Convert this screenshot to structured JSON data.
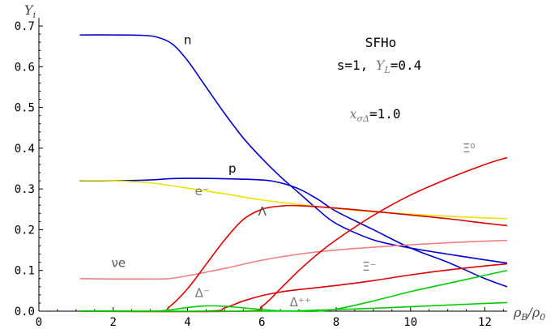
{
  "chart_data": {
    "type": "line",
    "xlabel": "ρB/ρ0",
    "ylabel": "Yi",
    "xlim": [
      0,
      12.6
    ],
    "ylim": [
      0,
      0.72
    ],
    "xticks": [
      0,
      2,
      4,
      6,
      8,
      10,
      12
    ],
    "yticks": [
      0.0,
      0.1,
      0.2,
      0.3,
      0.4,
      0.5,
      0.6,
      0.7
    ],
    "xtick_labels": [
      "0",
      "2",
      "4",
      "6",
      "8",
      "10",
      "12"
    ],
    "ytick_labels": [
      "0.0",
      "0.1",
      "0.2",
      "0.3",
      "0.4",
      "0.5",
      "0.6",
      "0.7"
    ],
    "grid": false,
    "annotations": [
      {
        "text": "SFHo"
      },
      {
        "text": "s=1, YL=0.4"
      },
      {
        "text": "xσΔ=1.0"
      }
    ],
    "series": [
      {
        "name": "n",
        "color": "#0000cc",
        "x": [
          1.1,
          2.0,
          2.8,
          3.2,
          3.6,
          4.0,
          4.5,
          5.0,
          5.5,
          6.0,
          6.5,
          7.0,
          7.5,
          8.0,
          9.0,
          10.0,
          11.0,
          12.0,
          12.6
        ],
        "y": [
          0.678,
          0.678,
          0.677,
          0.672,
          0.655,
          0.615,
          0.55,
          0.485,
          0.425,
          0.375,
          0.33,
          0.29,
          0.25,
          0.215,
          0.175,
          0.155,
          0.14,
          0.126,
          0.118
        ]
      },
      {
        "name": "p",
        "color": "#0000cc",
        "x": [
          1.1,
          2.0,
          3.0,
          3.5,
          4.0,
          5.0,
          6.0,
          6.5,
          7.0,
          7.5,
          8.0,
          9.0,
          10.0,
          11.0,
          12.0,
          12.6
        ],
        "y": [
          0.32,
          0.32,
          0.322,
          0.325,
          0.326,
          0.325,
          0.322,
          0.315,
          0.3,
          0.275,
          0.245,
          0.2,
          0.155,
          0.12,
          0.08,
          0.06
        ]
      },
      {
        "name": "e⁻",
        "color": "#e6e600",
        "x": [
          1.1,
          2.0,
          3.0,
          4.0,
          5.0,
          6.0,
          7.0,
          8.0,
          9.0,
          10.0,
          11.0,
          12.0,
          12.6
        ],
        "y": [
          0.321,
          0.32,
          0.315,
          0.302,
          0.288,
          0.273,
          0.262,
          0.252,
          0.244,
          0.238,
          0.233,
          0.229,
          0.227
        ]
      },
      {
        "name": "νe",
        "color": "#f08080",
        "x": [
          1.1,
          2.0,
          3.0,
          3.5,
          4.0,
          5.0,
          6.0,
          7.0,
          8.0,
          9.0,
          10.0,
          11.0,
          12.0,
          12.6
        ],
        "y": [
          0.08,
          0.079,
          0.079,
          0.08,
          0.087,
          0.105,
          0.125,
          0.14,
          0.15,
          0.157,
          0.163,
          0.168,
          0.172,
          0.174
        ]
      },
      {
        "name": "Λ",
        "color": "#dd0000",
        "x": [
          1.1,
          3.2,
          3.5,
          4.0,
          4.5,
          5.0,
          5.5,
          6.0,
          6.5,
          7.0,
          8.0,
          9.0,
          10.0,
          11.0,
          12.0,
          12.6
        ],
        "y": [
          0.0,
          0.0,
          0.01,
          0.055,
          0.115,
          0.175,
          0.225,
          0.25,
          0.258,
          0.259,
          0.253,
          0.245,
          0.236,
          0.227,
          0.216,
          0.21
        ]
      },
      {
        "name": "Ξ⁰",
        "color": "#dd0000",
        "x": [
          1.1,
          5.5,
          6.0,
          6.5,
          7.0,
          7.5,
          8.0,
          9.0,
          10.0,
          11.0,
          12.0,
          12.6
        ],
        "y": [
          0.0,
          0.0,
          0.012,
          0.055,
          0.1,
          0.14,
          0.175,
          0.235,
          0.285,
          0.325,
          0.36,
          0.377
        ]
      },
      {
        "name": "Ξ⁻",
        "color": "#dd0000",
        "x": [
          1.1,
          4.5,
          5.0,
          5.5,
          6.0,
          6.5,
          7.0,
          8.0,
          9.0,
          10.0,
          11.0,
          12.0,
          12.6
        ],
        "y": [
          0.0,
          0.0,
          0.008,
          0.025,
          0.038,
          0.047,
          0.053,
          0.063,
          0.075,
          0.089,
          0.101,
          0.111,
          0.116
        ]
      },
      {
        "name": "Δ⁻",
        "color": "#00cc00",
        "x": [
          1.1,
          3.0,
          3.5,
          4.0,
          4.5,
          5.0,
          5.5,
          6.0,
          6.5,
          7.0,
          7.5,
          8.0,
          9.0,
          10.0,
          11.0,
          12.0,
          12.6
        ],
        "y": [
          0.0,
          0.0,
          0.003,
          0.009,
          0.013,
          0.012,
          0.008,
          0.004,
          0.001,
          0.0,
          0.0,
          0.005,
          0.025,
          0.048,
          0.068,
          0.088,
          0.1
        ]
      },
      {
        "name": "Δ⁺⁺",
        "color": "#00cc00",
        "x": [
          1.1,
          6.5,
          7.0,
          8.0,
          9.0,
          10.0,
          11.0,
          12.0,
          12.6
        ],
        "y": [
          0.0,
          0.0,
          0.001,
          0.004,
          0.007,
          0.011,
          0.015,
          0.019,
          0.021
        ]
      }
    ],
    "curve_labels": [
      {
        "text": "n",
        "color": "#000000",
        "at": [
          3.9,
          0.655
        ]
      },
      {
        "text": "p",
        "color": "#000000",
        "at": [
          5.1,
          0.34
        ]
      },
      {
        "text": "e⁻",
        "color": "#777777",
        "at": [
          4.2,
          0.284
        ]
      },
      {
        "text": "Λ",
        "color": "#555555",
        "at": [
          5.9,
          0.235
        ]
      },
      {
        "text": "Ξ⁰",
        "color": "#777777",
        "at": [
          11.4,
          0.39
        ]
      },
      {
        "text": "Ξ⁻",
        "color": "#777777",
        "at": [
          8.7,
          0.099
        ]
      },
      {
        "text": "νe",
        "color": "#555555",
        "at": [
          1.95,
          0.108
        ]
      },
      {
        "text": "Δ⁻",
        "color": "#777777",
        "at": [
          4.2,
          0.035
        ]
      },
      {
        "text": "Δ⁺⁺",
        "color": "#777777",
        "at": [
          6.75,
          0.012
        ]
      }
    ]
  }
}
